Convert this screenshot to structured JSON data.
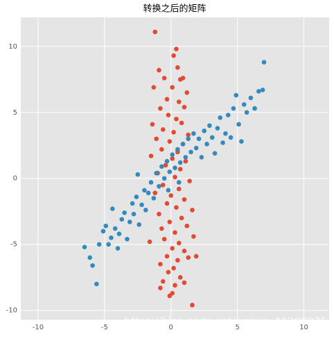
{
  "chart_data": {
    "type": "scatter",
    "title": "转换之后的矩阵",
    "watermark": "https://blog.csdn.net/weixin_41200075",
    "xlim": [
      -11.3,
      11.9
    ],
    "ylim": [
      -10.7,
      12.2
    ],
    "xticks": [
      -10,
      -5,
      0,
      5,
      10
    ],
    "yticks": [
      -10,
      -5,
      0,
      5,
      10
    ],
    "grid": true,
    "series": [
      {
        "color": "#E24A33",
        "x": [
          -1.2,
          0.4,
          0.2,
          -0.9,
          0.5,
          -0.5,
          0.7,
          0.9,
          -1.3,
          0.1,
          1.2,
          -0.3,
          0.6,
          -0.8,
          1.0,
          -0.2,
          0.4,
          -1.4,
          0.8,
          -0.6,
          0.2,
          1.3,
          -1.1,
          -0.1,
          0.9,
          -0.7,
          0.5,
          -1.5,
          0.1,
          1.1,
          -0.4,
          0.7,
          -1.0,
          0.3,
          1.4,
          -0.6,
          0.6,
          -1.2,
          0.0,
          1.0,
          -0.3,
          0.4,
          1.6,
          -0.9,
          0.8,
          -0.1,
          1.2,
          -0.7,
          0.3,
          1.7,
          -0.5,
          0.6,
          -1.6,
          0.1,
          1.0,
          -0.3,
          0.5,
          1.3,
          -0.8,
          0.2,
          1.9,
          -0.2,
          0.7,
          -0.6,
          0.3,
          1.0,
          -0.8,
          0.1,
          -0.1,
          1.6
        ],
        "y": [
          11.1,
          9.8,
          9.3,
          8.2,
          8.4,
          7.6,
          7.5,
          7.6,
          6.9,
          6.9,
          6.5,
          6.0,
          5.8,
          5.3,
          5.4,
          4.8,
          4.5,
          4.1,
          4.2,
          3.7,
          3.5,
          3.3,
          3.0,
          2.8,
          2.6,
          2.2,
          2.0,
          1.7,
          1.5,
          1.3,
          1.0,
          0.7,
          0.4,
          0.1,
          -0.2,
          -0.5,
          -0.8,
          -1.1,
          -1.3,
          -1.6,
          -1.9,
          -2.2,
          -2.4,
          -2.7,
          -3.0,
          -3.3,
          -3.6,
          -3.8,
          -4.1,
          -4.4,
          -4.6,
          -4.9,
          -4.8,
          -5.3,
          -5.5,
          -5.9,
          -6.2,
          -6.0,
          -6.5,
          -6.8,
          -5.9,
          -7.1,
          -7.5,
          -7.8,
          -8.1,
          -7.9,
          -8.3,
          -8.7,
          -8.9,
          -9.6
        ]
      },
      {
        "color": "#348ABD",
        "x": [
          -6.5,
          -6.1,
          -5.9,
          -5.6,
          -5.4,
          -5.1,
          -4.9,
          -4.7,
          -4.5,
          -4.4,
          -4.2,
          -4.0,
          -3.9,
          -3.7,
          -3.5,
          -3.3,
          -3.1,
          -2.9,
          -2.8,
          -2.6,
          -2.4,
          -2.2,
          -2.0,
          -1.9,
          -1.7,
          -1.5,
          -1.3,
          -1.1,
          -0.9,
          -0.7,
          -0.5,
          -0.3,
          -0.1,
          0.1,
          0.3,
          0.5,
          0.7,
          0.9,
          1.1,
          1.3,
          1.5,
          1.7,
          1.9,
          2.1,
          2.3,
          2.5,
          2.7,
          2.9,
          3.1,
          3.3,
          3.5,
          3.7,
          3.9,
          4.1,
          4.3,
          4.5,
          4.7,
          4.9,
          5.1,
          5.3,
          5.5,
          5.7,
          6.0,
          6.3,
          6.6,
          6.9,
          7.0,
          -0.2,
          0.6,
          -2.5
        ],
        "y": [
          -5.2,
          -6.0,
          -6.6,
          -8.0,
          -5.0,
          -4.0,
          -3.6,
          -5.0,
          -4.5,
          -2.3,
          -3.8,
          -5.3,
          -4.2,
          -3.1,
          -2.6,
          -4.6,
          -3.3,
          -1.9,
          -2.7,
          -1.4,
          -3.5,
          -2.0,
          -0.9,
          -2.4,
          -1.1,
          -0.3,
          -1.5,
          0.4,
          -0.6,
          0.9,
          0.0,
          1.3,
          0.5,
          1.8,
          0.8,
          2.2,
          1.2,
          2.6,
          1.6,
          3.0,
          2.0,
          3.4,
          2.3,
          3.0,
          1.6,
          3.6,
          2.6,
          4.0,
          3.1,
          1.9,
          3.8,
          4.6,
          2.7,
          3.4,
          4.8,
          3.1,
          5.3,
          6.3,
          4.1,
          2.8,
          5.6,
          5.0,
          6.1,
          5.3,
          6.6,
          6.7,
          8.8,
          -0.9,
          -0.3,
          0.3
        ]
      }
    ]
  }
}
